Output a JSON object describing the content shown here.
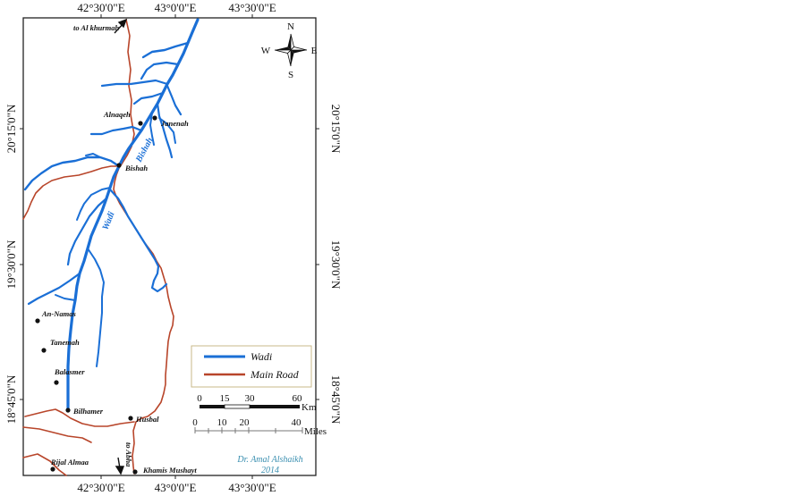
{
  "colors": {
    "wadi": "#1a6fd6",
    "road": "#b8452a",
    "frame": "#222222",
    "legend_border": "#c8b98a",
    "signature": "#3a8fb0"
  },
  "top_longitudes": [
    "42°30'0\"E",
    "43°0'0\"E",
    "43°30'0\"E"
  ],
  "bottom_longitudes": [
    "42°30'0\"E",
    "43°0'0\"E",
    "43°30'0\"E"
  ],
  "left_latitudes": [
    "20°15'0\"N",
    "19°30'0\"N",
    "18°45'0\"N"
  ],
  "right_latitudes": [
    "20°15'0\"N",
    "19°30'0\"N",
    "18°45'0\"N"
  ],
  "compass": {
    "n": "N",
    "s": "S",
    "e": "E",
    "w": "W",
    "icon": "compass-rose-icon"
  },
  "towns": {
    "alnaqeh": "Alnaqeh",
    "janenah": "Janenah",
    "bishah": "Bishah",
    "an_namas": "An-Namas",
    "tanemah": "Tanemah",
    "balasmer": "Balasmer",
    "bilhamer": "Bilhamer",
    "husbal": "Husbal",
    "rijal_almaa": "Rijal Almaa",
    "khamis_mushayt": "Khamis Mushayt"
  },
  "directions": {
    "to_al_khurmah": "to Al khurmah",
    "to_abha": "to Abha"
  },
  "wadi_labels": {
    "word1": "Wadi",
    "word2": "Bishah"
  },
  "legend": {
    "wadi": "Wadi",
    "road": "Main Road"
  },
  "scale": {
    "km_ticks": [
      "0",
      "15",
      "30",
      "60"
    ],
    "km_unit": "Km",
    "mile_ticks": [
      "0",
      "10",
      "20",
      "40"
    ],
    "mile_unit": "Miles"
  },
  "signature": {
    "author": "Dr. Amal Alshaikh",
    "year": "2014"
  }
}
